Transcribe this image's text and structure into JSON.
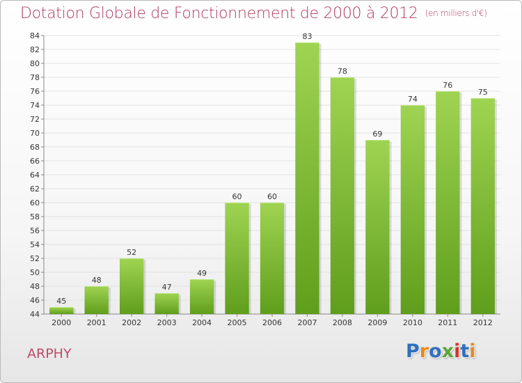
{
  "title": "Dotation Globale de Fonctionnement de 2000 à 2012",
  "subtitle": "(en milliers d'€)",
  "commune": "ARPHY",
  "logo": {
    "text": "Proxiti",
    "colors": [
      "#2f6fbd",
      "#e8891c",
      "#2f6fbd",
      "#5aa63a",
      "#d4322c",
      "#2f6fbd",
      "#e8891c"
    ]
  },
  "colors": {
    "bar_top": "#9fd452",
    "bar_bottom": "#5f9e1c",
    "title": "#b03a5e"
  },
  "chart_data": {
    "type": "bar",
    "categories": [
      "2000",
      "2001",
      "2002",
      "2003",
      "2004",
      "2005",
      "2006",
      "2007",
      "2008",
      "2009",
      "2010",
      "2011",
      "2012"
    ],
    "values": [
      45,
      48,
      52,
      47,
      49,
      60,
      60,
      83,
      78,
      69,
      74,
      76,
      75
    ],
    "title": "Dotation Globale de Fonctionnement de 2000 à 2012",
    "subtitle": "(en milliers d'€)",
    "xlabel": "",
    "ylabel": "",
    "ylim": [
      44,
      84
    ],
    "yticks": [
      44,
      46,
      48,
      50,
      52,
      54,
      56,
      58,
      60,
      62,
      64,
      66,
      68,
      70,
      72,
      74,
      76,
      78,
      80,
      82,
      84
    ],
    "grid": true,
    "legend": "none"
  }
}
